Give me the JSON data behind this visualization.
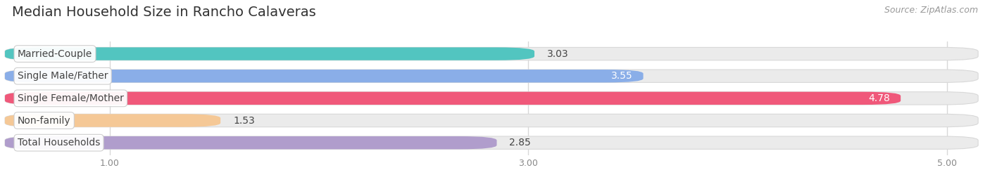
{
  "title": "Median Household Size in Rancho Calaveras",
  "source": "Source: ZipAtlas.com",
  "categories": [
    "Married-Couple",
    "Single Male/Father",
    "Single Female/Mother",
    "Non-family",
    "Total Households"
  ],
  "values": [
    3.03,
    3.55,
    4.78,
    1.53,
    2.85
  ],
  "bar_colors": [
    "#52c5c0",
    "#8aaee8",
    "#f0587a",
    "#f5c896",
    "#b09dcc"
  ],
  "value_inside": [
    false,
    true,
    true,
    false,
    false
  ],
  "xlim_left": 0.5,
  "xlim_right": 5.15,
  "xticks": [
    1.0,
    3.0,
    5.0
  ],
  "xticklabels": [
    "1.00",
    "3.00",
    "5.00"
  ],
  "title_fontsize": 14,
  "source_fontsize": 9,
  "bar_label_fontsize": 10,
  "category_fontsize": 10,
  "background_color": "#ffffff",
  "bar_background_color": "#ebebeb",
  "bar_bg_border_color": "#d8d8d8",
  "grid_color": "#d8d8d8"
}
